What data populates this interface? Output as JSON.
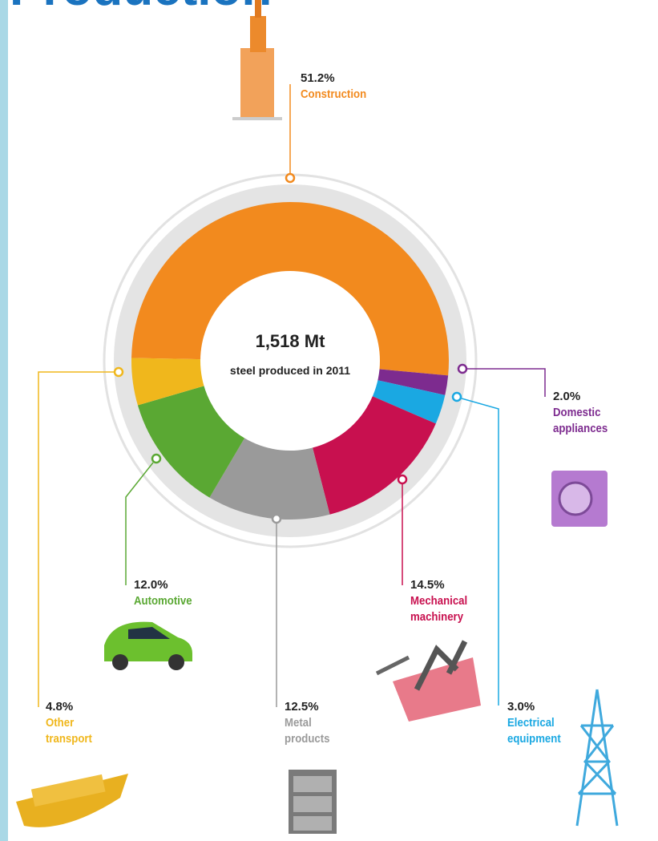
{
  "chart_data": {
    "type": "donut",
    "title": "Production",
    "center_label": "1,518 Mt",
    "center_sublabel": "steel produced in 2011",
    "categories": [
      "Construction",
      "Domestic appliances",
      "Electrical equipment",
      "Mechanical machinery",
      "Metal products",
      "Automotive",
      "Other transport"
    ],
    "values": [
      51.2,
      2.0,
      3.0,
      14.5,
      12.5,
      12.0,
      4.8
    ],
    "value_labels": [
      "51.2%",
      "2.0%",
      "3.0%",
      "14.5%",
      "12.5%",
      "12.0%",
      "4.8%"
    ],
    "colors": [
      "#f28a1e",
      "#7d2b8f",
      "#1aa8e2",
      "#c8104f",
      "#9a9a9a",
      "#5aa833",
      "#f0b71c"
    ]
  }
}
